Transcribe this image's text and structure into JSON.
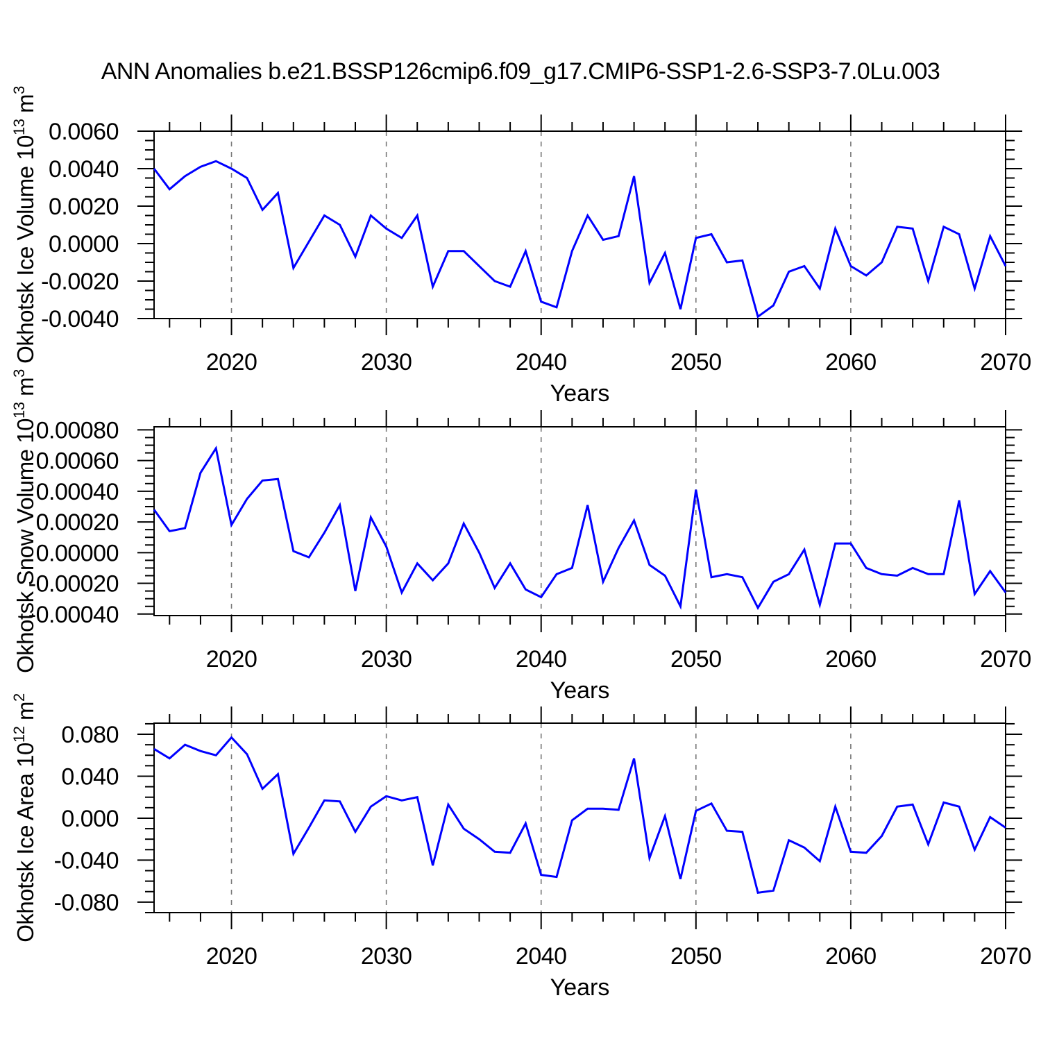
{
  "title": "ANN Anomalies b.e21.BSSP126cmip6.f09_g17.CMIP6-SSP1-2.6-SSP3-7.0Lu.003",
  "style": {
    "line_color": "#0000ff",
    "grid_color": "#777777",
    "axis_color": "#000000",
    "background": "#ffffff"
  },
  "x_axis": {
    "label": "Years",
    "start": 2015,
    "end": 2070,
    "major_ticks": [
      2020,
      2030,
      2040,
      2050,
      2060,
      2070
    ],
    "major_tick_labels": [
      "2020",
      "2030",
      "2040",
      "2050",
      "2060",
      "2070"
    ],
    "minor_tick_step": 2,
    "gridlines": "vertical-dashed-at-major-ticks"
  },
  "years": [
    2015,
    2016,
    2017,
    2018,
    2019,
    2020,
    2021,
    2022,
    2023,
    2024,
    2025,
    2026,
    2027,
    2028,
    2029,
    2030,
    2031,
    2032,
    2033,
    2034,
    2035,
    2036,
    2037,
    2038,
    2039,
    2040,
    2041,
    2042,
    2043,
    2044,
    2045,
    2046,
    2047,
    2048,
    2049,
    2050,
    2051,
    2052,
    2053,
    2054,
    2055,
    2056,
    2057,
    2058,
    2059,
    2060,
    2061,
    2062,
    2063,
    2064,
    2065,
    2066,
    2067,
    2068,
    2069,
    2070
  ],
  "chart_data": [
    {
      "type": "line",
      "name": "ice-volume",
      "ylabel": "Okhotsk Ice Volume 10¹³ m³",
      "ylabel_parts": [
        {
          "text": "Okhotsk Ice Volume 10"
        },
        {
          "text": "13",
          "super": true
        },
        {
          "text": " m"
        },
        {
          "text": "3",
          "super": true
        }
      ],
      "xlabel": "Years",
      "ylim": [
        -0.004,
        0.006
      ],
      "ytick_values": [
        0.006,
        0.004,
        0.002,
        0.0,
        -0.002,
        -0.004
      ],
      "ytick_labels": [
        "0.0060",
        "0.0040",
        "0.0020",
        "0.0000",
        "-0.0020",
        "-0.0040"
      ],
      "ytick_minor_step": 0.0005,
      "values": [
        0.004,
        0.0029,
        0.0036,
        0.0041,
        0.0044,
        0.004,
        0.0035,
        0.0018,
        0.0027,
        -0.0013,
        0.0001,
        0.0015,
        0.001,
        -0.0007,
        0.0015,
        0.0008,
        0.0003,
        0.0015,
        -0.0023,
        -0.0004,
        -0.0004,
        -0.0012,
        -0.002,
        -0.0023,
        -0.0004,
        -0.0031,
        -0.0034,
        -0.0004,
        0.0015,
        0.0002,
        0.0004,
        0.0036,
        -0.0021,
        -0.0005,
        -0.0035,
        0.0003,
        0.0005,
        -0.001,
        -0.0009,
        -0.0039,
        -0.0033,
        -0.0015,
        -0.0012,
        -0.0024,
        0.0008,
        -0.0012,
        -0.0017,
        -0.001,
        0.0009,
        0.0008,
        -0.002,
        0.0009,
        0.0005,
        -0.0024,
        0.0004,
        -0.0012
      ]
    },
    {
      "type": "line",
      "name": "snow-volume",
      "ylabel": "Okhotsk Snow Volume 10¹³ m³",
      "ylabel_parts": [
        {
          "text": "Okhotsk Snow Volume 10"
        },
        {
          "text": "13",
          "super": true
        },
        {
          "text": " m"
        },
        {
          "text": "3",
          "super": true
        }
      ],
      "xlabel": "Years",
      "ylim": [
        -0.00041,
        0.00082
      ],
      "ytick_values": [
        0.0008,
        0.0006,
        0.0004,
        0.0002,
        0.0,
        -0.0002,
        -0.0004
      ],
      "ytick_labels": [
        "0.00080",
        "0.00060",
        "0.00040",
        "0.00020",
        "0.00000",
        "-0.00020",
        "-0.00040"
      ],
      "ytick_minor_step": 5e-05,
      "values": [
        0.00028,
        0.00014,
        0.00016,
        0.00052,
        0.00068,
        0.00018,
        0.00035,
        0.00047,
        0.00048,
        1e-05,
        -3e-05,
        0.00013,
        0.00031,
        -0.00025,
        0.00023,
        4e-05,
        -0.00026,
        -7e-05,
        -0.00018,
        -7e-05,
        0.00019,
        0.0,
        -0.00023,
        -7e-05,
        -0.00024,
        -0.00029,
        -0.00014,
        -0.0001,
        0.00031,
        -0.00019,
        3e-05,
        0.00021,
        -8e-05,
        -0.00015,
        -0.00035,
        0.00041,
        -0.00016,
        -0.00014,
        -0.00016,
        -0.00036,
        -0.00019,
        -0.00014,
        2e-05,
        -0.00034,
        6e-05,
        6e-05,
        -0.0001,
        -0.00014,
        -0.00015,
        -0.0001,
        -0.00014,
        -0.00014,
        0.00034,
        -0.00027,
        -0.00012,
        -0.00026
      ]
    },
    {
      "type": "line",
      "name": "ice-area",
      "ylabel": "Okhotsk Ice Area 10¹² m²",
      "ylabel_parts": [
        {
          "text": "Okhotsk Ice Area 10"
        },
        {
          "text": "12",
          "super": true
        },
        {
          "text": " m"
        },
        {
          "text": "2",
          "super": true
        }
      ],
      "xlabel": "Years",
      "ylim": [
        -0.09,
        0.0906
      ],
      "ytick_values": [
        0.08,
        0.04,
        0.0,
        -0.04,
        -0.08
      ],
      "ytick_labels": [
        "0.080",
        "0.040",
        "0.000",
        "-0.040",
        "-0.080"
      ],
      "ytick_minor_step": 0.01,
      "values": [
        0.066,
        0.057,
        0.07,
        0.064,
        0.06,
        0.077,
        0.061,
        0.028,
        0.042,
        -0.034,
        -0.009,
        0.017,
        0.016,
        -0.013,
        0.011,
        0.021,
        0.017,
        0.02,
        -0.045,
        0.013,
        -0.01,
        -0.02,
        -0.032,
        -0.033,
        -0.005,
        -0.054,
        -0.056,
        -0.002,
        0.009,
        0.009,
        0.008,
        0.057,
        -0.038,
        0.002,
        -0.058,
        0.007,
        0.014,
        -0.012,
        -0.013,
        -0.071,
        -0.069,
        -0.021,
        -0.028,
        -0.041,
        0.011,
        -0.032,
        -0.033,
        -0.017,
        0.011,
        0.013,
        -0.025,
        0.015,
        0.011,
        -0.03,
        0.001,
        -0.009
      ]
    }
  ]
}
